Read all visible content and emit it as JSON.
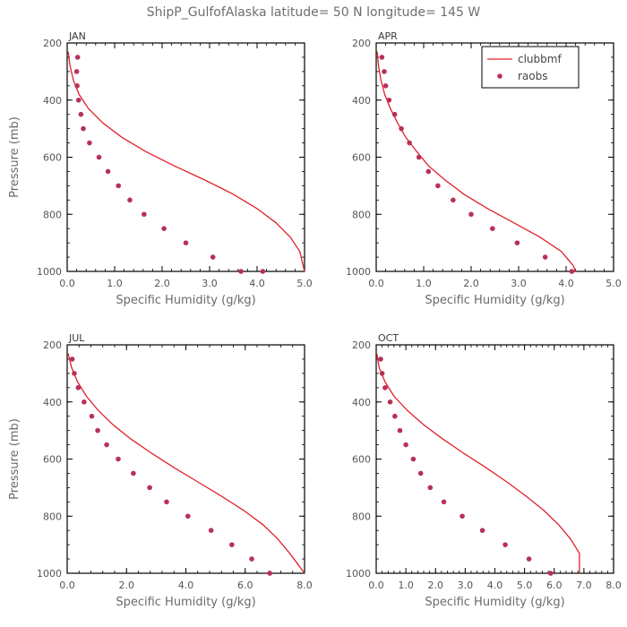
{
  "title": "ShipP_GulfofAlaska   latitude= 50 N longitude= 145 W",
  "colors": {
    "model": "#e0202a",
    "obs": "#b8305a",
    "axis": "#000000"
  },
  "legend": {
    "model_label": "clubbmf",
    "obs_label": "raobs",
    "placement": "top-right of APR panel"
  },
  "chart_data": [
    {
      "type": "line",
      "panel": "JAN",
      "xlabel": "Specific Humidity (g/kg)",
      "ylabel": "Pressure (mb)",
      "xlim": [
        0,
        5
      ],
      "ylim": [
        200,
        1000
      ],
      "y_inverted": true,
      "xticks": [
        "0.0",
        "1.0",
        "2.0",
        "3.0",
        "4.0",
        "5.0"
      ],
      "yticks": [
        "200",
        "400",
        "600",
        "800",
        "1000"
      ],
      "series": [
        {
          "name": "clubbmf",
          "style": "line",
          "x": [
            0.02,
            0.06,
            0.13,
            0.25,
            0.45,
            0.75,
            1.15,
            1.65,
            2.25,
            2.9,
            3.5,
            4.0,
            4.4,
            4.7,
            4.9,
            5.0
          ],
          "y": [
            230,
            280,
            330,
            380,
            430,
            480,
            530,
            580,
            630,
            680,
            730,
            780,
            830,
            880,
            930,
            1000
          ]
        },
        {
          "name": "raobs",
          "style": "markers",
          "x": [
            0.22,
            0.2,
            0.21,
            0.24,
            0.29,
            0.34,
            0.47,
            0.67,
            0.86,
            1.08,
            1.32,
            1.62,
            2.04,
            2.5,
            3.07,
            3.66,
            4.12
          ],
          "y": [
            250,
            300,
            350,
            400,
            450,
            500,
            550,
            600,
            650,
            700,
            750,
            800,
            850,
            900,
            950,
            1000,
            1000
          ]
        }
      ]
    },
    {
      "type": "line",
      "panel": "APR",
      "xlabel": "Specific Humidity (g/kg)",
      "ylabel": "",
      "xlim": [
        0,
        5
      ],
      "ylim": [
        200,
        1000
      ],
      "y_inverted": true,
      "xticks": [
        "0.0",
        "1.0",
        "2.0",
        "3.0",
        "4.0",
        "5.0"
      ],
      "yticks": [
        "200",
        "400",
        "600",
        "800",
        "1000"
      ],
      "series": [
        {
          "name": "clubbmf",
          "style": "line",
          "x": [
            0.02,
            0.05,
            0.1,
            0.18,
            0.3,
            0.45,
            0.62,
            0.85,
            1.1,
            1.45,
            1.85,
            2.35,
            2.9,
            3.45,
            3.9,
            4.15,
            4.2
          ],
          "y": [
            230,
            280,
            330,
            380,
            430,
            480,
            530,
            580,
            630,
            680,
            730,
            780,
            830,
            880,
            930,
            980,
            1000
          ]
        },
        {
          "name": "raobs",
          "style": "markers",
          "x": [
            0.12,
            0.17,
            0.2,
            0.27,
            0.39,
            0.53,
            0.7,
            0.9,
            1.1,
            1.3,
            1.62,
            2.0,
            2.45,
            2.97,
            3.56,
            4.12
          ],
          "y": [
            250,
            300,
            350,
            400,
            450,
            500,
            550,
            600,
            650,
            700,
            750,
            800,
            850,
            900,
            950,
            1000
          ]
        }
      ]
    },
    {
      "type": "line",
      "panel": "JUL",
      "xlabel": "Specific Humidity (g/kg)",
      "ylabel": "Pressure (mb)",
      "xlim": [
        0,
        8
      ],
      "ylim": [
        200,
        1000
      ],
      "y_inverted": true,
      "xticks": [
        "0.0",
        "2.0",
        "4.0",
        "6.0",
        "8.0"
      ],
      "yticks": [
        "200",
        "400",
        "600",
        "800",
        "1000"
      ],
      "series": [
        {
          "name": "clubbmf",
          "style": "line",
          "x": [
            0.03,
            0.15,
            0.35,
            0.65,
            1.05,
            1.55,
            2.15,
            2.85,
            3.6,
            4.4,
            5.2,
            5.95,
            6.6,
            7.1,
            7.5,
            8.0
          ],
          "y": [
            230,
            280,
            330,
            380,
            430,
            480,
            530,
            580,
            630,
            680,
            730,
            780,
            830,
            880,
            930,
            1000
          ]
        },
        {
          "name": "raobs",
          "style": "markers",
          "x": [
            0.17,
            0.24,
            0.37,
            0.57,
            0.83,
            1.03,
            1.33,
            1.72,
            2.23,
            2.78,
            3.35,
            4.07,
            4.85,
            5.55,
            6.22,
            6.83
          ],
          "y": [
            250,
            300,
            350,
            400,
            450,
            500,
            550,
            600,
            650,
            700,
            750,
            800,
            850,
            900,
            950,
            1000
          ]
        }
      ]
    },
    {
      "type": "line",
      "panel": "OCT",
      "xlabel": "Specific Humidity (g/kg)",
      "ylabel": "",
      "xlim": [
        0,
        8
      ],
      "ylim": [
        200,
        1000
      ],
      "y_inverted": true,
      "xticks": [
        "0.0",
        "1.0",
        "2.0",
        "3.0",
        "4.0",
        "5.0",
        "6.0",
        "7.0",
        "8.0"
      ],
      "yticks": [
        "200",
        "400",
        "600",
        "800",
        "1000"
      ],
      "series": [
        {
          "name": "clubbmf",
          "style": "line",
          "x": [
            0.02,
            0.1,
            0.3,
            0.6,
            1.05,
            1.6,
            2.25,
            2.95,
            3.7,
            4.4,
            5.05,
            5.65,
            6.15,
            6.55,
            6.85,
            6.85
          ],
          "y": [
            230,
            280,
            330,
            380,
            430,
            480,
            530,
            580,
            630,
            680,
            730,
            780,
            830,
            880,
            930,
            1000
          ]
        },
        {
          "name": "raobs",
          "style": "markers",
          "x": [
            0.15,
            0.2,
            0.3,
            0.47,
            0.63,
            0.8,
            1.0,
            1.25,
            1.5,
            1.82,
            2.28,
            2.9,
            3.58,
            4.35,
            5.15,
            5.88
          ],
          "y": [
            250,
            300,
            350,
            400,
            450,
            500,
            550,
            600,
            650,
            700,
            750,
            800,
            850,
            900,
            950,
            1000
          ]
        }
      ]
    }
  ]
}
